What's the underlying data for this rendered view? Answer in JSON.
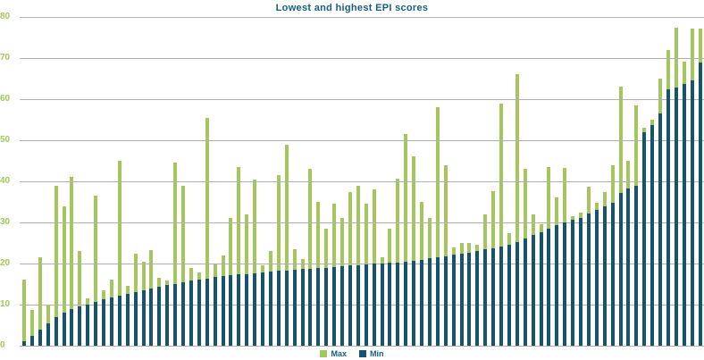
{
  "title": "Lowest and highest EPI scores",
  "legend": {
    "max_label": "Max",
    "min_label": "Min"
  },
  "colors": {
    "max_bar": "#a4c65c",
    "min_bar": "#16536d",
    "gridline": "#b0b0b0",
    "title_text": "#16607e",
    "tick_text": "#a4c65c"
  },
  "chart_data": {
    "type": "bar",
    "mode": "overlay",
    "title": "Lowest and highest EPI scores",
    "xlabel": "",
    "ylabel": "",
    "ylim": [
      0,
      80
    ],
    "yticks": [
      0,
      10,
      20,
      30,
      40,
      50,
      60,
      70,
      80
    ],
    "grid": true,
    "legend_position": "bottom",
    "series": [
      {
        "name": "Max",
        "color": "#a4c65c",
        "values": [
          16,
          8.6,
          21.5,
          10,
          39,
          34,
          41,
          23,
          11.5,
          36.5,
          13.5,
          16,
          45,
          14.5,
          22.4,
          20.4,
          23.3,
          16.5,
          15.8,
          44.6,
          38.9,
          19,
          17.8,
          55.5,
          19.8,
          22,
          31,
          43.5,
          32,
          40.5,
          19.5,
          23,
          41.5,
          49,
          23.5,
          21,
          43,
          35,
          28.5,
          34.5,
          31,
          37.5,
          39,
          34.5,
          38,
          21.5,
          28.5,
          40.6,
          51.5,
          46,
          35,
          31,
          58,
          44,
          24,
          25,
          25,
          24.5,
          32,
          37.7,
          59,
          27.5,
          66,
          43,
          32,
          29.5,
          43.5,
          36,
          43.3,
          31.5,
          32.5,
          38.6,
          34.7,
          37.5,
          44,
          63,
          45,
          58.4,
          53,
          55,
          65,
          72,
          77.3,
          69.2,
          77.2,
          77.2
        ]
      },
      {
        "name": "Min",
        "color": "#16536d",
        "values": [
          1,
          2.5,
          4,
          5.5,
          7,
          8,
          9,
          9.5,
          10,
          10.7,
          11.2,
          11.7,
          12.2,
          12.7,
          13.1,
          13.5,
          13.9,
          14.3,
          14.7,
          15.1,
          15.5,
          15.8,
          16.1,
          16.4,
          16.7,
          16.9,
          17.1,
          17.3,
          17.5,
          17.7,
          17.9,
          18.0,
          18.2,
          18.3,
          18.5,
          18.6,
          18.8,
          18.9,
          19.0,
          19.2,
          19.3,
          19.5,
          19.6,
          19.8,
          19.9,
          20.0,
          20.2,
          20.3,
          20.5,
          20.7,
          20.9,
          21.2,
          21.5,
          21.8,
          22.1,
          22.4,
          22.7,
          23.0,
          23.4,
          23.8,
          24.2,
          24.6,
          25.3,
          26.1,
          26.9,
          27.7,
          28.5,
          29.3,
          30.0,
          30.7,
          31.0,
          32.2,
          33.0,
          33.9,
          34.8,
          37.1,
          38.2,
          39.0,
          52.0,
          53.8,
          56.5,
          62.4,
          62.9,
          63.7,
          64.5,
          69.0
        ]
      }
    ]
  }
}
